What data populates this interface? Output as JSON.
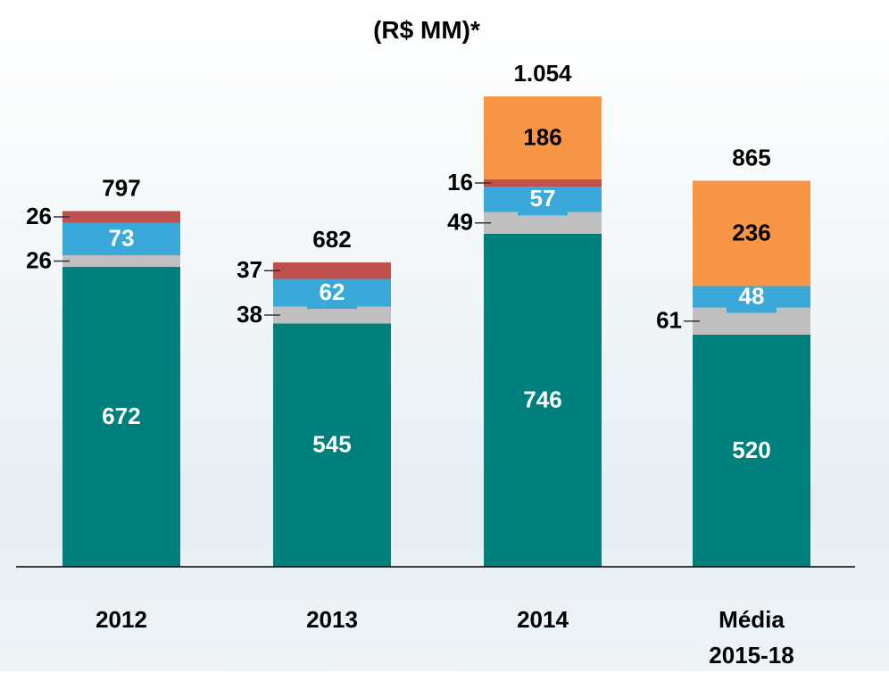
{
  "chart_data": {
    "type": "bar",
    "stacked": true,
    "title": "(R$ MM)*",
    "categories": [
      "2012",
      "2013",
      "2014",
      "Média 2015-18"
    ],
    "series": [
      {
        "color": "#00807c",
        "values": [
          672,
          545,
          746,
          520
        ]
      },
      {
        "color": "#c0c0c0",
        "values": [
          26,
          38,
          49,
          61
        ]
      },
      {
        "color": "#3aa9da",
        "values": [
          73,
          62,
          57,
          48
        ]
      },
      {
        "color": "#c0504d",
        "values": [
          26,
          37,
          16,
          null
        ]
      },
      {
        "color": "#f79646",
        "values": [
          null,
          null,
          186,
          236
        ]
      }
    ],
    "totals": {
      "values": [
        797,
        682,
        1054,
        865
      ],
      "value_labels": [
        "797",
        "682",
        "1.054",
        "865"
      ]
    }
  }
}
